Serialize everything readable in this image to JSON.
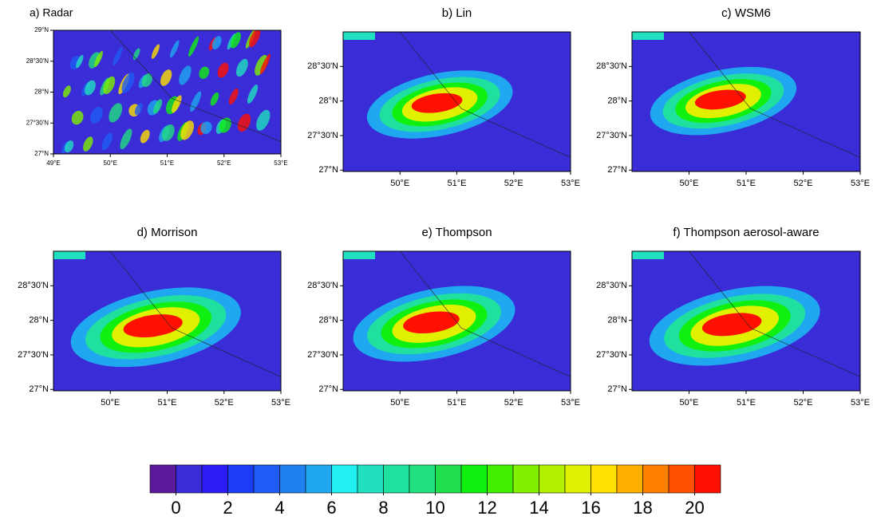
{
  "panels": [
    {
      "title": "a) Radar",
      "xlim": [
        49,
        53
      ],
      "ylim": [
        27,
        29
      ],
      "xticks": [
        {
          "value": 49,
          "label": "49°E"
        },
        {
          "value": 50,
          "label": "50°E"
        },
        {
          "value": 51,
          "label": "51°E"
        },
        {
          "value": 52,
          "label": "52°E"
        },
        {
          "value": 53,
          "label": "53°E"
        }
      ],
      "yticks": [
        {
          "value": 27,
          "label": "27°N"
        },
        {
          "value": 27.5,
          "label": "27°30'N"
        },
        {
          "value": 28,
          "label": "28°N"
        },
        {
          "value": 28.5,
          "label": "28°30'N"
        },
        {
          "value": 29,
          "label": "29°N"
        }
      ]
    },
    {
      "title": "b) Lin",
      "xlim": [
        49,
        53
      ],
      "ylim": [
        26.98,
        29
      ],
      "xticks": [
        {
          "value": 50,
          "label": "50°E"
        },
        {
          "value": 51,
          "label": "51°E"
        },
        {
          "value": 52,
          "label": "52°E"
        },
        {
          "value": 53,
          "label": "53°E"
        }
      ],
      "yticks": [
        {
          "value": 27,
          "label": "27°N"
        },
        {
          "value": 27.5,
          "label": "27°30'N"
        },
        {
          "value": 28,
          "label": "28°N"
        },
        {
          "value": 28.5,
          "label": "28°30'N"
        }
      ]
    },
    {
      "title": "c) WSM6",
      "xlim": [
        49,
        53
      ],
      "ylim": [
        26.98,
        29
      ],
      "xticks": [
        {
          "value": 50,
          "label": "50°E"
        },
        {
          "value": 51,
          "label": "51°E"
        },
        {
          "value": 52,
          "label": "52°E"
        },
        {
          "value": 53,
          "label": "53°E"
        }
      ],
      "yticks": [
        {
          "value": 27,
          "label": "27°N"
        },
        {
          "value": 27.5,
          "label": "27°30'N"
        },
        {
          "value": 28,
          "label": "28°N"
        },
        {
          "value": 28.5,
          "label": "28°30'N"
        }
      ]
    },
    {
      "title": "d) Morrison",
      "xlim": [
        49,
        53
      ],
      "ylim": [
        26.98,
        29
      ],
      "xticks": [
        {
          "value": 50,
          "label": "50°E"
        },
        {
          "value": 51,
          "label": "51°E"
        },
        {
          "value": 52,
          "label": "52°E"
        },
        {
          "value": 53,
          "label": "53°E"
        }
      ],
      "yticks": [
        {
          "value": 27,
          "label": "27°N"
        },
        {
          "value": 27.5,
          "label": "27°30'N"
        },
        {
          "value": 28,
          "label": "28°N"
        },
        {
          "value": 28.5,
          "label": "28°30'N"
        }
      ]
    },
    {
      "title": "e) Thompson",
      "xlim": [
        49,
        53
      ],
      "ylim": [
        26.98,
        29
      ],
      "xticks": [
        {
          "value": 50,
          "label": "50°E"
        },
        {
          "value": 51,
          "label": "51°E"
        },
        {
          "value": 52,
          "label": "52°E"
        },
        {
          "value": 53,
          "label": "53°E"
        }
      ],
      "yticks": [
        {
          "value": 27,
          "label": "27°N"
        },
        {
          "value": 27.5,
          "label": "27°30'N"
        },
        {
          "value": 28,
          "label": "28°N"
        },
        {
          "value": 28.5,
          "label": "28°30'N"
        }
      ]
    },
    {
      "title": "f) Thompson aerosol-aware",
      "xlim": [
        49,
        53
      ],
      "ylim": [
        26.98,
        29
      ],
      "xticks": [
        {
          "value": 50,
          "label": "50°E"
        },
        {
          "value": 51,
          "label": "51°E"
        },
        {
          "value": 52,
          "label": "52°E"
        },
        {
          "value": 53,
          "label": "53°E"
        }
      ],
      "yticks": [
        {
          "value": 27,
          "label": "27°N"
        },
        {
          "value": 27.5,
          "label": "27°30'N"
        },
        {
          "value": 28,
          "label": "28°N"
        },
        {
          "value": 28.5,
          "label": "28°30'N"
        }
      ]
    }
  ],
  "colorbar": {
    "range": [
      -1,
      21
    ],
    "ticks": [
      0,
      2,
      4,
      6,
      8,
      10,
      12,
      14,
      16,
      18,
      20
    ],
    "colors": [
      "#5a1a9a",
      "#3a2cd6",
      "#2a1cf2",
      "#1d3cf5",
      "#1e5cf5",
      "#1f80f0",
      "#1fa8f0",
      "#20f0f0",
      "#20e0c0",
      "#20e0a0",
      "#20e080",
      "#20e050",
      "#10f010",
      "#40f000",
      "#80f000",
      "#b0f000",
      "#e0f000",
      "#ffe000",
      "#ffb000",
      "#ff8000",
      "#ff5000",
      "#ff1000"
    ]
  }
}
